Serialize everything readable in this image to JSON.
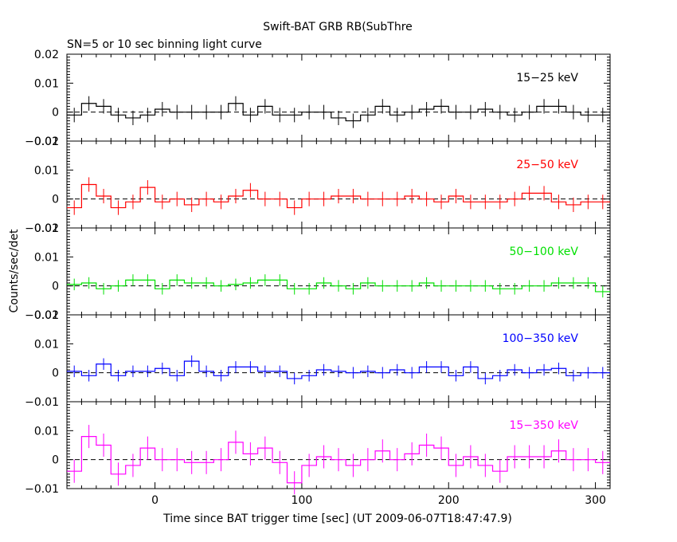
{
  "chart_data": {
    "type": "line",
    "title": "Swift-BAT GRB RB(SubThre",
    "subtitle": "SN=5 or 10 sec binning light curve",
    "xlabel": "Time since BAT trigger time [sec] (UT 2009-06-07T18:47:47.9)",
    "ylabel": "Counts/sec/det",
    "xlim": [
      -60,
      310
    ],
    "x_ticks": [
      0,
      100,
      200,
      300
    ],
    "x_ticklabels": [
      "0",
      "100",
      "200",
      "300"
    ],
    "bin_width": 10,
    "grid": false,
    "legend": "series name top-right inside each panel",
    "x": [
      -55,
      -45,
      -35,
      -25,
      -15,
      -5,
      5,
      15,
      25,
      35,
      45,
      55,
      65,
      75,
      85,
      95,
      105,
      115,
      125,
      135,
      145,
      155,
      165,
      175,
      185,
      195,
      205,
      215,
      225,
      235,
      245,
      255,
      265,
      275,
      285,
      295,
      305
    ],
    "panels": [
      {
        "name": "15−25 keV",
        "color": "#000000",
        "ylim": [
          -0.01,
          0.02
        ],
        "y_ticks": [
          -0.01,
          0,
          0.01,
          0.02
        ],
        "y_ticklabels": [
          "−0.01",
          "0",
          "0.01",
          "0.02"
        ],
        "values": [
          -0.001,
          0.003,
          0.002,
          -0.001,
          -0.002,
          -0.001,
          0.001,
          0.0,
          0.0,
          0.0,
          0.0,
          0.003,
          -0.001,
          0.002,
          -0.001,
          -0.001,
          0.0,
          0.0,
          -0.002,
          -0.003,
          -0.001,
          0.002,
          -0.001,
          0.0,
          0.001,
          0.002,
          0.0,
          0.0,
          0.001,
          0.0,
          -0.001,
          0.0,
          0.002,
          0.002,
          0.0,
          -0.001,
          -0.001
        ],
        "errors": 0.0025
      },
      {
        "name": "25−50 keV",
        "color": "#ff0000",
        "ylim": [
          -0.01,
          0.02
        ],
        "y_ticks": [
          -0.01,
          0,
          0.01,
          0.02
        ],
        "y_ticklabels": [
          "−0.01",
          "0",
          "0.01",
          "0.02"
        ],
        "values": [
          -0.003,
          0.005,
          0.001,
          -0.003,
          -0.001,
          0.004,
          -0.001,
          0.0,
          -0.002,
          0.0,
          -0.001,
          0.001,
          0.003,
          0.0,
          0.0,
          -0.003,
          0.0,
          0.0,
          0.001,
          0.001,
          0.0,
          0.0,
          0.0,
          0.001,
          0.0,
          -0.001,
          0.001,
          -0.001,
          -0.001,
          -0.001,
          0.0,
          0.002,
          0.002,
          -0.001,
          -0.002,
          -0.001,
          -0.001
        ],
        "errors": 0.0025
      },
      {
        "name": "50−100 keV",
        "color": "#00e000",
        "ylim": [
          -0.01,
          0.02
        ],
        "y_ticks": [
          -0.01,
          0,
          0.01,
          0.02
        ],
        "y_ticklabels": [
          "−0.01",
          "0",
          "0.01",
          "0.02"
        ],
        "values": [
          0.0005,
          0.001,
          -0.001,
          0.0,
          0.002,
          0.002,
          -0.001,
          0.002,
          0.001,
          0.001,
          0.0,
          0.0005,
          0.001,
          0.002,
          0.002,
          -0.001,
          -0.001,
          0.001,
          0.0,
          -0.001,
          0.001,
          0.0,
          0.0,
          0.0,
          0.001,
          0.0,
          0.0,
          0.0,
          0.0,
          -0.001,
          -0.001,
          0.0,
          0.0,
          0.001,
          0.001,
          0.001,
          -0.002
        ],
        "errors": 0.002
      },
      {
        "name": "100−350 keV",
        "color": "#0000ff",
        "ylim": [
          -0.01,
          0.02
        ],
        "y_ticks": [
          -0.01,
          0,
          0.01,
          0.02
        ],
        "y_ticklabels": [
          "−0.01",
          "0",
          "0.01",
          "0.02"
        ],
        "values": [
          0.0005,
          -0.001,
          0.003,
          -0.001,
          0.0005,
          0.0005,
          0.0015,
          -0.001,
          0.004,
          0.0005,
          -0.001,
          0.002,
          0.002,
          0.0005,
          0.0005,
          -0.002,
          -0.001,
          0.001,
          0.0005,
          0.0,
          0.0005,
          0.0,
          0.001,
          0.0,
          0.002,
          0.002,
          -0.001,
          0.002,
          -0.002,
          -0.001,
          0.001,
          0.0,
          0.001,
          0.0015,
          -0.001,
          0.0,
          0.0
        ],
        "errors": 0.002
      },
      {
        "name": "15−350 keV",
        "color": "#ff00ff",
        "ylim": [
          -0.01,
          0.02
        ],
        "y_ticks": [
          -0.01,
          0,
          0.01
        ],
        "y_ticklabels": [
          "−0.01",
          "0",
          "0.01"
        ],
        "values": [
          -0.004,
          0.008,
          0.005,
          -0.005,
          -0.002,
          0.004,
          0.0,
          0.0,
          -0.001,
          -0.001,
          0.0,
          0.006,
          0.002,
          0.004,
          -0.001,
          -0.008,
          -0.002,
          0.001,
          0.0,
          -0.002,
          0.0,
          0.003,
          0.0,
          0.002,
          0.005,
          0.004,
          -0.002,
          0.001,
          -0.002,
          -0.004,
          0.001,
          0.001,
          0.001,
          0.003,
          0.0,
          0.0,
          -0.001
        ],
        "errors": 0.004
      }
    ]
  }
}
